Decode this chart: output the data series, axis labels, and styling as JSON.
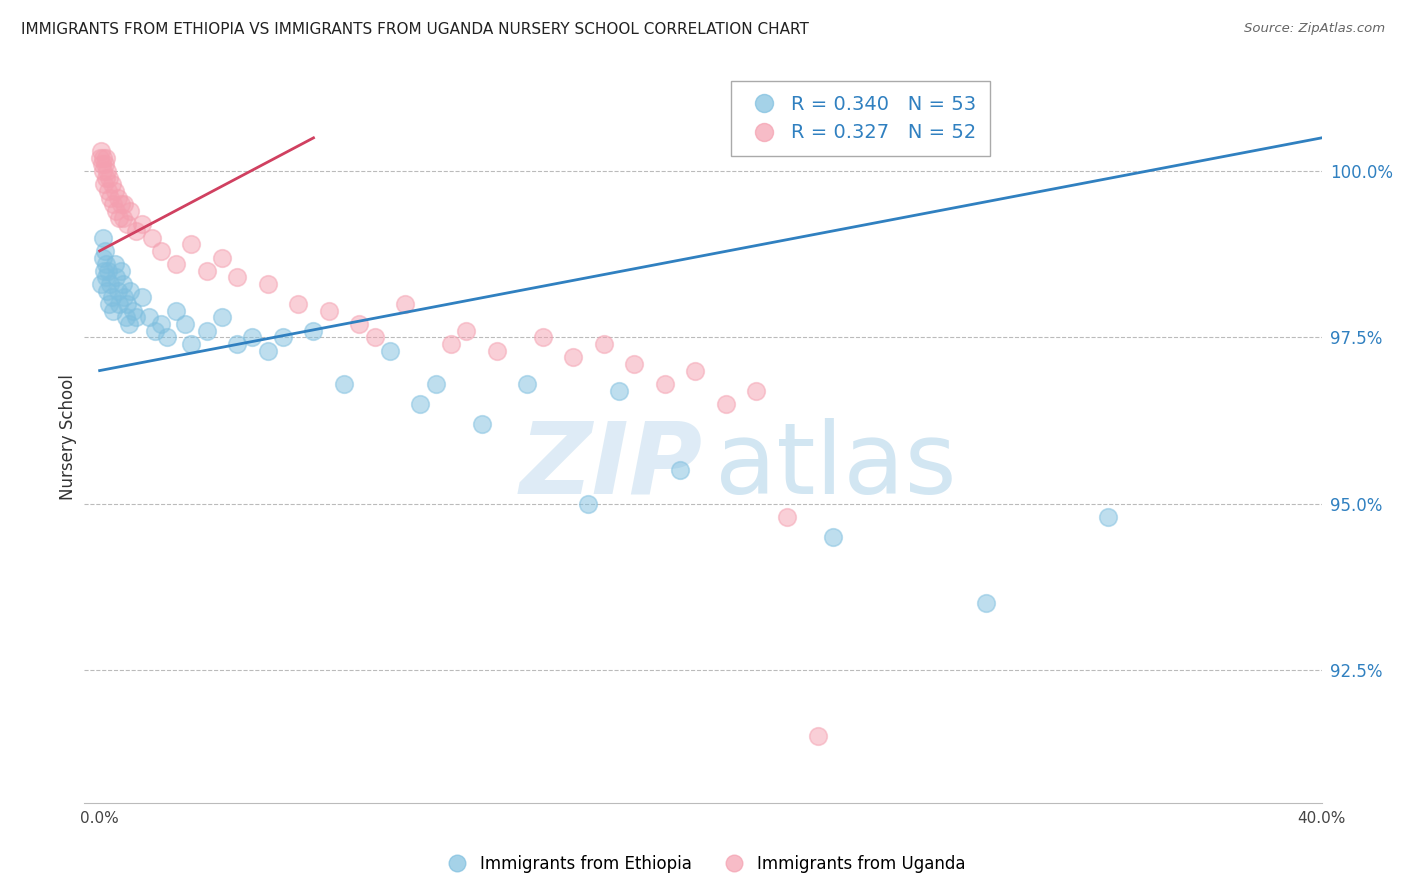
{
  "title": "IMMIGRANTS FROM ETHIOPIA VS IMMIGRANTS FROM UGANDA NURSERY SCHOOL CORRELATION CHART",
  "source": "Source: ZipAtlas.com",
  "ylabel": "Nursery School",
  "legend_label_blue": "Immigrants from Ethiopia",
  "legend_label_pink": "Immigrants from Uganda",
  "r_blue": 0.34,
  "n_blue": 53,
  "r_pink": 0.327,
  "n_pink": 52,
  "xlim": [
    -0.5,
    40.0
  ],
  "ylim": [
    90.5,
    101.5
  ],
  "yticks": [
    92.5,
    95.0,
    97.5,
    100.0
  ],
  "blue_color": "#7fbfdf",
  "pink_color": "#f4a0b0",
  "blue_line_color": "#3080c0",
  "pink_line_color": "#d04060",
  "blue_x": [
    0.05,
    0.1,
    0.12,
    0.15,
    0.18,
    0.2,
    0.22,
    0.25,
    0.28,
    0.3,
    0.35,
    0.4,
    0.45,
    0.5,
    0.55,
    0.6,
    0.65,
    0.7,
    0.75,
    0.8,
    0.85,
    0.9,
    0.95,
    1.0,
    1.1,
    1.2,
    1.4,
    1.6,
    1.8,
    2.0,
    2.2,
    2.5,
    2.8,
    3.0,
    3.5,
    4.0,
    4.5,
    5.0,
    5.5,
    6.0,
    7.0,
    8.0,
    9.5,
    10.5,
    11.0,
    12.5,
    14.0,
    16.0,
    17.0,
    19.0,
    24.0,
    29.0,
    33.0
  ],
  "blue_y": [
    98.3,
    99.0,
    98.7,
    98.5,
    98.8,
    98.4,
    98.6,
    98.2,
    98.5,
    98.0,
    98.3,
    98.1,
    97.9,
    98.6,
    98.4,
    98.2,
    98.0,
    98.5,
    98.3,
    98.1,
    97.8,
    98.0,
    97.7,
    98.2,
    97.9,
    97.8,
    98.1,
    97.8,
    97.6,
    97.7,
    97.5,
    97.9,
    97.7,
    97.4,
    97.6,
    97.8,
    97.4,
    97.5,
    97.3,
    97.5,
    97.6,
    96.8,
    97.3,
    96.5,
    96.8,
    96.2,
    96.8,
    95.0,
    96.7,
    95.5,
    94.5,
    93.5,
    94.8
  ],
  "pink_x": [
    0.02,
    0.05,
    0.08,
    0.1,
    0.12,
    0.15,
    0.18,
    0.2,
    0.22,
    0.25,
    0.28,
    0.3,
    0.35,
    0.4,
    0.45,
    0.5,
    0.55,
    0.6,
    0.65,
    0.7,
    0.75,
    0.8,
    0.9,
    1.0,
    1.2,
    1.4,
    1.7,
    2.0,
    2.5,
    3.0,
    3.5,
    4.0,
    4.5,
    5.5,
    6.5,
    7.5,
    8.5,
    9.0,
    10.0,
    11.5,
    12.0,
    13.0,
    14.5,
    15.5,
    16.5,
    17.5,
    18.5,
    19.5,
    20.5,
    21.5,
    22.5,
    23.5
  ],
  "pink_y": [
    100.2,
    100.3,
    100.1,
    100.2,
    100.0,
    99.8,
    100.1,
    99.9,
    100.2,
    100.0,
    99.7,
    99.9,
    99.6,
    99.8,
    99.5,
    99.7,
    99.4,
    99.6,
    99.3,
    99.5,
    99.3,
    99.5,
    99.2,
    99.4,
    99.1,
    99.2,
    99.0,
    98.8,
    98.6,
    98.9,
    98.5,
    98.7,
    98.4,
    98.3,
    98.0,
    97.9,
    97.7,
    97.5,
    98.0,
    97.4,
    97.6,
    97.3,
    97.5,
    97.2,
    97.4,
    97.1,
    96.8,
    97.0,
    96.5,
    96.7,
    94.8,
    91.5
  ],
  "blue_line_x0": 0.0,
  "blue_line_x1": 40.0,
  "blue_line_y0": 97.0,
  "blue_line_y1": 100.5,
  "pink_line_x0": 0.0,
  "pink_line_x1": 7.0,
  "pink_line_y0": 98.8,
  "pink_line_y1": 100.5
}
